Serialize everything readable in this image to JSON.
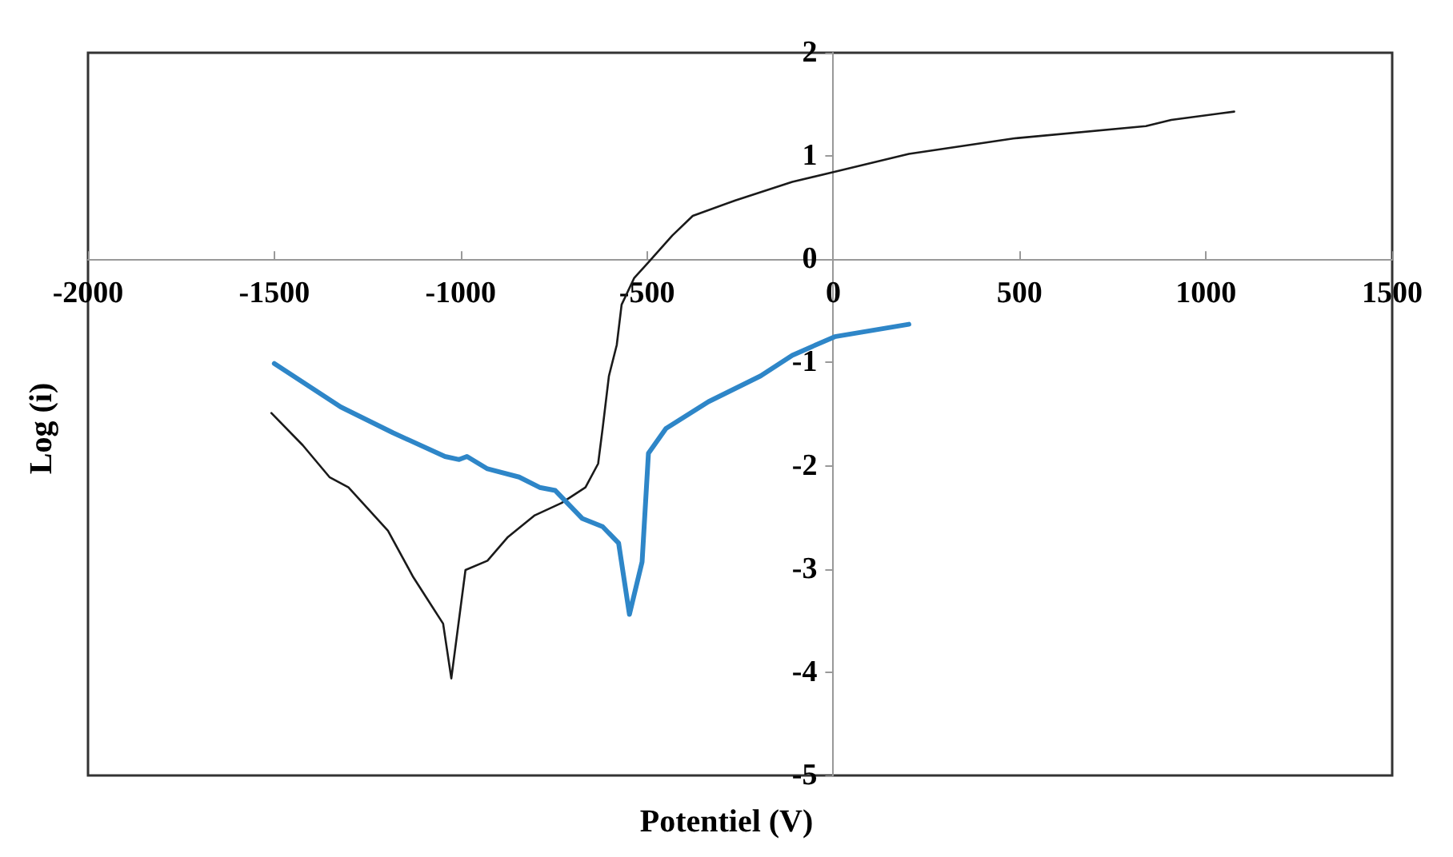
{
  "chart_data": {
    "type": "line",
    "xlabel": "Potentiel (V)",
    "ylabel": "Log (i)",
    "xlim": [
      -2000,
      1500
    ],
    "xticks": [
      -2000,
      -1500,
      -1000,
      -500,
      0,
      500,
      1000,
      1500
    ],
    "ylim": [
      -5,
      2
    ],
    "yticks": [
      -5,
      -4,
      -3,
      -2,
      -1,
      0,
      1,
      2
    ],
    "grid": false,
    "marker": "none",
    "line_style": "solid",
    "series": [
      {
        "color": "#1a1a1a",
        "x": [
          -1508,
          -1424,
          -1352,
          -1301,
          -1195,
          -1127,
          -1047,
          -1025,
          -987,
          -928,
          -873,
          -801,
          -729,
          -665,
          -631,
          -619,
          -602,
          -581,
          -568,
          -534,
          -496,
          -432,
          -377,
          -263,
          -110,
          -4,
          203,
          483,
          839,
          907,
          1076
        ],
        "values": [
          -1.49,
          -1.8,
          -2.11,
          -2.21,
          -2.63,
          -3.08,
          -3.53,
          -4.06,
          -3.01,
          -2.92,
          -2.69,
          -2.48,
          -2.36,
          -2.21,
          -1.98,
          -1.64,
          -1.13,
          -0.83,
          -0.44,
          -0.18,
          -0.03,
          0.23,
          0.42,
          0.57,
          0.75,
          0.84,
          1.02,
          1.17,
          1.29,
          1.35,
          1.43
        ]
      },
      {
        "color": "#2e86c8",
        "x": [
          -1500,
          -1322,
          -1182,
          -1042,
          -1004,
          -983,
          -928,
          -843,
          -788,
          -746,
          -674,
          -619,
          -576,
          -547,
          -513,
          -496,
          -449,
          -335,
          -195,
          -110,
          4,
          203
        ],
        "values": [
          -1.01,
          -1.43,
          -1.68,
          -1.91,
          -1.94,
          -1.91,
          -2.03,
          -2.11,
          -2.21,
          -2.24,
          -2.51,
          -2.59,
          -2.75,
          -3.44,
          -2.93,
          -1.88,
          -1.64,
          -1.38,
          -1.13,
          -0.93,
          -0.75,
          -0.63
        ]
      }
    ]
  }
}
